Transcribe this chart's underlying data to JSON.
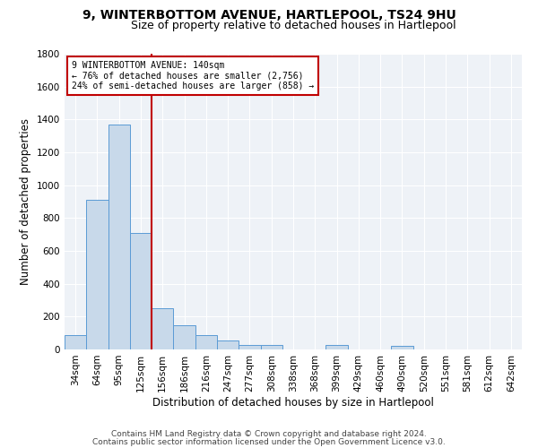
{
  "title": "9, WINTERBOTTOM AVENUE, HARTLEPOOL, TS24 9HU",
  "subtitle": "Size of property relative to detached houses in Hartlepool",
  "xlabel": "Distribution of detached houses by size in Hartlepool",
  "ylabel": "Number of detached properties",
  "categories": [
    "34sqm",
    "64sqm",
    "95sqm",
    "125sqm",
    "156sqm",
    "186sqm",
    "216sqm",
    "247sqm",
    "277sqm",
    "308sqm",
    "338sqm",
    "368sqm",
    "399sqm",
    "429sqm",
    "460sqm",
    "490sqm",
    "520sqm",
    "551sqm",
    "581sqm",
    "612sqm",
    "642sqm"
  ],
  "values": [
    90,
    910,
    1370,
    710,
    250,
    145,
    90,
    55,
    30,
    30,
    0,
    0,
    25,
    0,
    0,
    20,
    0,
    0,
    0,
    0,
    0
  ],
  "bar_color": "#c8d9ea",
  "bar_edge_color": "#5b9bd5",
  "ylim": [
    0,
    1800
  ],
  "yticks": [
    0,
    200,
    400,
    600,
    800,
    1000,
    1200,
    1400,
    1600,
    1800
  ],
  "vline_color": "#c00000",
  "annotation_title": "9 WINTERBOTTOM AVENUE: 140sqm",
  "annotation_line1": "← 76% of detached houses are smaller (2,756)",
  "annotation_line2": "24% of semi-detached houses are larger (858) →",
  "annotation_box_color": "#ffffff",
  "annotation_box_edge": "#c00000",
  "footer1": "Contains HM Land Registry data © Crown copyright and database right 2024.",
  "footer2": "Contains public sector information licensed under the Open Government Licence v3.0.",
  "bg_color": "#ffffff",
  "plot_bg_color": "#eef2f7",
  "grid_color": "#ffffff",
  "title_fontsize": 10,
  "subtitle_fontsize": 9,
  "axis_label_fontsize": 8.5,
  "tick_fontsize": 7.5,
  "footer_fontsize": 6.5
}
